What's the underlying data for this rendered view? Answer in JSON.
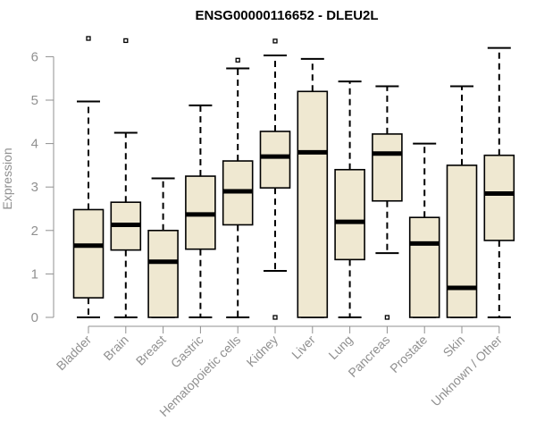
{
  "chart_data": {
    "type": "boxplot",
    "title": "ENSG00000116652 - DLEU2L",
    "xlabel": "",
    "ylabel": "Expression",
    "ylim": [
      0,
      6.5
    ],
    "yticks": [
      0,
      1,
      2,
      3,
      4,
      5,
      6
    ],
    "colors": {
      "box_fill": "#efe8d1",
      "stroke": "#000000",
      "axis": "#909090"
    },
    "categories": [
      "Bladder",
      "Brain",
      "Breast",
      "Gastric",
      "Hematopoietic cells",
      "Kidney",
      "Liver",
      "Lung",
      "Pancreas",
      "Prostate",
      "Skin",
      "Unknown / Other"
    ],
    "boxes": [
      {
        "name": "Bladder",
        "min": 0,
        "q1": 0.45,
        "median": 1.65,
        "q3": 2.48,
        "max": 4.97,
        "outliers": [
          6.42
        ]
      },
      {
        "name": "Brain",
        "min": 0,
        "q1": 1.55,
        "median": 2.13,
        "q3": 2.65,
        "max": 4.25,
        "outliers": [
          6.37
        ]
      },
      {
        "name": "Breast",
        "min": 0,
        "q1": 0,
        "median": 1.28,
        "q3": 2.0,
        "max": 3.2,
        "outliers": []
      },
      {
        "name": "Gastric",
        "min": 0,
        "q1": 1.57,
        "median": 2.37,
        "q3": 3.25,
        "max": 4.88,
        "outliers": []
      },
      {
        "name": "Hematopoietic cells",
        "min": 0,
        "q1": 2.13,
        "median": 2.9,
        "q3": 3.6,
        "max": 5.73,
        "outliers": [
          5.92
        ]
      },
      {
        "name": "Kidney",
        "min": 1.07,
        "q1": 2.98,
        "median": 3.7,
        "q3": 4.28,
        "max": 6.03,
        "outliers": [
          6.36,
          0.0
        ]
      },
      {
        "name": "Liver",
        "min": 0,
        "q1": 0,
        "median": 3.8,
        "q3": 5.2,
        "max": 5.95,
        "outliers": []
      },
      {
        "name": "Lung",
        "min": 0,
        "q1": 1.33,
        "median": 2.2,
        "q3": 3.4,
        "max": 5.43,
        "outliers": []
      },
      {
        "name": "Pancreas",
        "min": 1.48,
        "q1": 2.68,
        "median": 3.77,
        "q3": 4.22,
        "max": 5.32,
        "outliers": [
          0.0
        ]
      },
      {
        "name": "Prostate",
        "min": 0,
        "q1": 0,
        "median": 1.7,
        "q3": 2.3,
        "max": 4.0,
        "outliers": []
      },
      {
        "name": "Skin",
        "min": 0,
        "q1": 0,
        "median": 0.68,
        "q3": 3.5,
        "max": 5.32,
        "outliers": []
      },
      {
        "name": "Unknown / Other",
        "min": 0,
        "q1": 1.77,
        "median": 2.85,
        "q3": 3.73,
        "max": 6.2,
        "outliers": []
      }
    ]
  }
}
